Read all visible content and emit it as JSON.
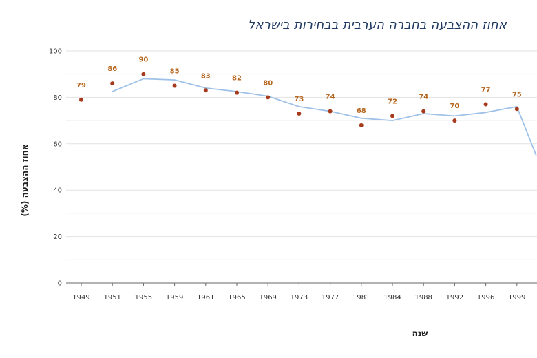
{
  "chart_data": {
    "type": "line",
    "title": "אחוז ההצבעה בחברה הערבית בבחירות בישראל",
    "xlabel": "שנה",
    "ylabel": "אחוז ההצבעה (%)",
    "ylim": [
      0,
      100
    ],
    "yticks": [
      "0",
      "20",
      "40",
      "60",
      "80",
      "100"
    ],
    "grid": true,
    "categories": [
      "1949",
      "1951",
      "1955",
      "1959",
      "1961",
      "1965",
      "1969",
      "1973",
      "1977",
      "1981",
      "1984",
      "1988",
      "1992",
      "1996",
      "1999"
    ],
    "series": [
      {
        "type": "scatter",
        "color": "#a63a1c",
        "values": [
          79,
          86,
          90,
          85,
          83,
          82,
          80,
          73,
          74,
          68,
          72,
          74,
          70,
          77,
          75
        ],
        "labels": [
          "79",
          "86",
          "90",
          "85",
          "83",
          "82",
          "80",
          "73",
          "74",
          "68",
          "72",
          "74",
          "70",
          "77",
          "75"
        ],
        "label_color": "#b5651d"
      },
      {
        "type": "line",
        "color": "#9ec1e8",
        "x": [
          "1951",
          "1955",
          "1959",
          "1961",
          "1965",
          "1969",
          "1973",
          "1977",
          "1981",
          "1984",
          "1988",
          "1992",
          "1996",
          "1999"
        ],
        "values": [
          82.5,
          88,
          87.5,
          84,
          82.5,
          80.5,
          76,
          74,
          71,
          70,
          73,
          72,
          73.5,
          76
        ]
      }
    ]
  }
}
